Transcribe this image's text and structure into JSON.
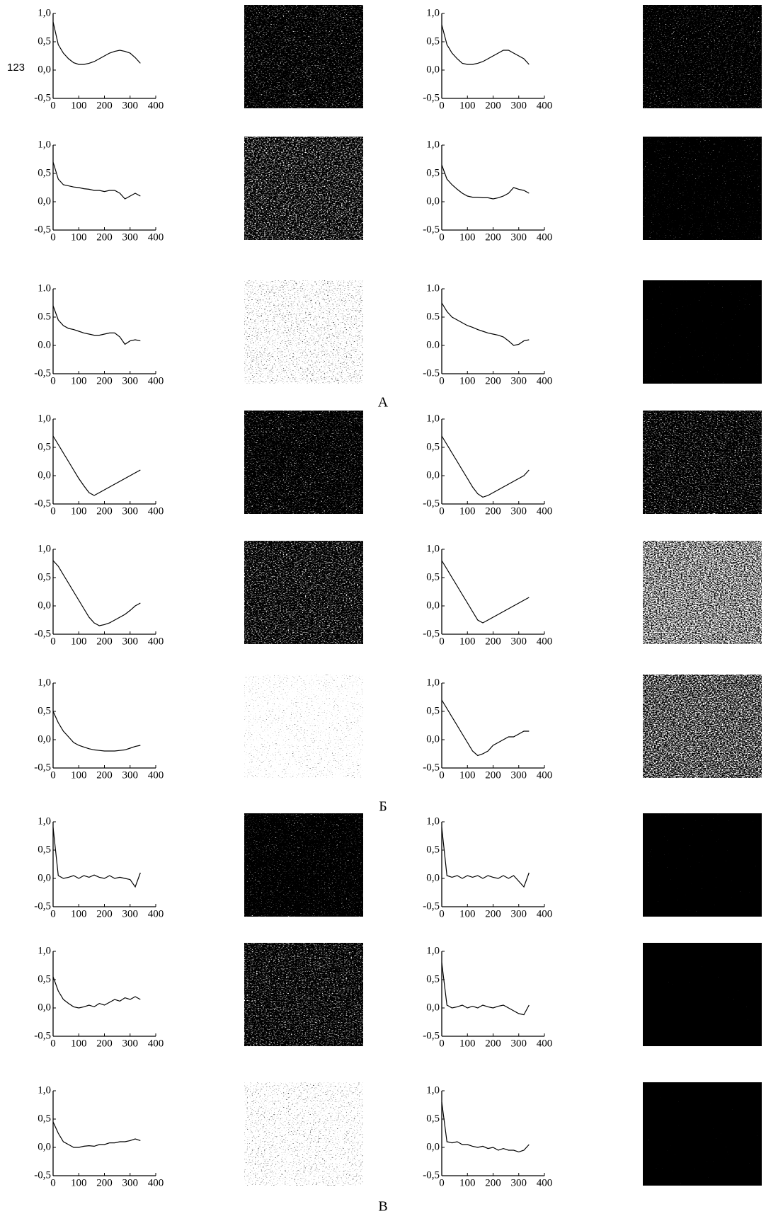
{
  "page_number": "123",
  "section_labels": [
    "А",
    "Б",
    "В"
  ],
  "chart_data": [
    {
      "type": "line",
      "color": "#000000",
      "xlim": [
        0,
        400
      ],
      "ylim": [
        -0.5,
        1.0
      ],
      "xticks": [
        0,
        100,
        200,
        300,
        400
      ],
      "yticks": [
        {
          "value": -0.5,
          "label": "-0,5"
        },
        {
          "value": 0,
          "label": "0,0"
        },
        {
          "value": 0.5,
          "label": "0,5"
        },
        {
          "value": 1,
          "label": "1,0"
        }
      ],
      "x": [
        0,
        20,
        40,
        60,
        80,
        100,
        120,
        140,
        160,
        180,
        200,
        220,
        240,
        260,
        280,
        300,
        320,
        340
      ],
      "values": [
        0.85,
        0.45,
        0.3,
        0.2,
        0.13,
        0.1,
        0.1,
        0.12,
        0.15,
        0.2,
        0.25,
        0.3,
        0.33,
        0.35,
        0.33,
        0.3,
        0.22,
        0.12
      ]
    },
    {
      "type": "line",
      "color": "#000000",
      "xlim": [
        0,
        400
      ],
      "ylim": [
        -0.5,
        1.0
      ],
      "xticks": [
        0,
        100,
        200,
        300,
        400
      ],
      "yticks": [
        {
          "value": -0.5,
          "label": "-0,5"
        },
        {
          "value": 0,
          "label": "0,0"
        },
        {
          "value": 0.5,
          "label": "0,5"
        },
        {
          "value": 1,
          "label": "1,0"
        }
      ],
      "x": [
        0,
        20,
        40,
        60,
        80,
        100,
        120,
        140,
        160,
        180,
        200,
        220,
        240,
        260,
        280,
        300,
        320,
        340
      ],
      "values": [
        0.8,
        0.45,
        0.3,
        0.2,
        0.12,
        0.1,
        0.1,
        0.12,
        0.15,
        0.2,
        0.25,
        0.3,
        0.35,
        0.35,
        0.3,
        0.25,
        0.2,
        0.1
      ]
    },
    {
      "type": "line",
      "color": "#000000",
      "xlim": [
        0,
        400
      ],
      "ylim": [
        -0.5,
        1.0
      ],
      "xticks": [
        0,
        100,
        200,
        300,
        400
      ],
      "yticks": [
        {
          "value": -0.5,
          "label": "-0,5"
        },
        {
          "value": 0,
          "label": "0,0"
        },
        {
          "value": 0.5,
          "label": "0,5"
        },
        {
          "value": 1,
          "label": "1,0"
        }
      ],
      "x": [
        0,
        20,
        40,
        60,
        80,
        100,
        120,
        140,
        160,
        180,
        200,
        220,
        240,
        260,
        280,
        300,
        320,
        340
      ],
      "values": [
        0.7,
        0.4,
        0.3,
        0.28,
        0.26,
        0.25,
        0.23,
        0.22,
        0.2,
        0.2,
        0.18,
        0.2,
        0.2,
        0.15,
        0.05,
        0.1,
        0.15,
        0.1
      ]
    },
    {
      "type": "line",
      "color": "#000000",
      "xlim": [
        0,
        400
      ],
      "ylim": [
        -0.5,
        1.0
      ],
      "xticks": [
        0,
        100,
        200,
        300,
        400
      ],
      "yticks": [
        {
          "value": -0.5,
          "label": "-0,5"
        },
        {
          "value": 0,
          "label": "0,0"
        },
        {
          "value": 0.5,
          "label": "0,5"
        },
        {
          "value": 1,
          "label": "1,0"
        }
      ],
      "x": [
        0,
        20,
        40,
        60,
        80,
        100,
        120,
        140,
        160,
        180,
        200,
        220,
        240,
        260,
        280,
        300,
        320,
        340
      ],
      "values": [
        0.65,
        0.4,
        0.3,
        0.22,
        0.15,
        0.1,
        0.08,
        0.08,
        0.07,
        0.07,
        0.05,
        0.07,
        0.1,
        0.15,
        0.25,
        0.22,
        0.2,
        0.15
      ]
    },
    {
      "type": "line",
      "color": "#000000",
      "xlim": [
        0,
        400
      ],
      "ylim": [
        -0.5,
        1.0
      ],
      "xticks": [
        0,
        100,
        200,
        300,
        400
      ],
      "yticks": [
        {
          "value": -0.5,
          "label": "-0,5"
        },
        {
          "value": 0,
          "label": "0.0"
        },
        {
          "value": 0.5,
          "label": "0.5"
        },
        {
          "value": 1,
          "label": "1.0"
        }
      ],
      "x": [
        0,
        20,
        40,
        60,
        80,
        100,
        120,
        140,
        160,
        180,
        200,
        220,
        240,
        260,
        280,
        300,
        320,
        340
      ],
      "values": [
        0.7,
        0.45,
        0.35,
        0.3,
        0.28,
        0.25,
        0.22,
        0.2,
        0.18,
        0.18,
        0.2,
        0.22,
        0.22,
        0.15,
        0.02,
        0.08,
        0.1,
        0.08
      ]
    },
    {
      "type": "line",
      "color": "#000000",
      "xlim": [
        0,
        400
      ],
      "ylim": [
        -0.5,
        1.0
      ],
      "xticks": [
        0,
        100,
        200,
        300,
        400
      ],
      "yticks": [
        {
          "value": -0.5,
          "label": "-0.5"
        },
        {
          "value": 0,
          "label": "0.0"
        },
        {
          "value": 0.5,
          "label": "0.5"
        },
        {
          "value": 1,
          "label": "1.0"
        }
      ],
      "x": [
        0,
        20,
        40,
        60,
        80,
        100,
        120,
        140,
        160,
        180,
        200,
        220,
        240,
        260,
        280,
        300,
        320,
        340
      ],
      "values": [
        0.75,
        0.6,
        0.5,
        0.45,
        0.4,
        0.35,
        0.32,
        0.28,
        0.25,
        0.22,
        0.2,
        0.18,
        0.15,
        0.08,
        0.0,
        0.02,
        0.08,
        0.1
      ]
    },
    {
      "type": "line",
      "color": "#000000",
      "xlim": [
        0,
        400
      ],
      "ylim": [
        -0.5,
        1.0
      ],
      "xticks": [
        0,
        100,
        200,
        300,
        400
      ],
      "yticks": [
        {
          "value": -0.5,
          "label": "-0,5"
        },
        {
          "value": 0,
          "label": "0,0"
        },
        {
          "value": 0.5,
          "label": "0,5"
        },
        {
          "value": 1,
          "label": "1,0"
        }
      ],
      "x": [
        0,
        20,
        40,
        60,
        80,
        100,
        120,
        140,
        160,
        180,
        200,
        220,
        240,
        260,
        280,
        300,
        320,
        340
      ],
      "values": [
        0.7,
        0.55,
        0.4,
        0.25,
        0.1,
        -0.05,
        -0.18,
        -0.3,
        -0.35,
        -0.3,
        -0.25,
        -0.2,
        -0.15,
        -0.1,
        -0.05,
        0.0,
        0.05,
        0.1
      ]
    },
    {
      "type": "line",
      "color": "#000000",
      "xlim": [
        0,
        400
      ],
      "ylim": [
        -0.5,
        1.0
      ],
      "xticks": [
        0,
        100,
        200,
        300,
        400
      ],
      "yticks": [
        {
          "value": -0.5,
          "label": "-0,5"
        },
        {
          "value": 0,
          "label": "0,0"
        },
        {
          "value": 0.5,
          "label": "0,5"
        },
        {
          "value": 1,
          "label": "1,0"
        }
      ],
      "x": [
        0,
        20,
        40,
        60,
        80,
        100,
        120,
        140,
        160,
        180,
        200,
        220,
        240,
        260,
        280,
        300,
        320,
        340
      ],
      "values": [
        0.7,
        0.55,
        0.4,
        0.25,
        0.1,
        -0.05,
        -0.2,
        -0.32,
        -0.38,
        -0.35,
        -0.3,
        -0.25,
        -0.2,
        -0.15,
        -0.1,
        -0.05,
        0.0,
        0.1
      ]
    },
    {
      "type": "line",
      "color": "#000000",
      "xlim": [
        0,
        400
      ],
      "ylim": [
        -0.5,
        1.0
      ],
      "xticks": [
        0,
        100,
        200,
        300,
        400
      ],
      "yticks": [
        {
          "value": -0.5,
          "label": "-0,5"
        },
        {
          "value": 0,
          "label": "0,0"
        },
        {
          "value": 0.5,
          "label": "0,5"
        },
        {
          "value": 1,
          "label": "1,0"
        }
      ],
      "x": [
        0,
        20,
        40,
        60,
        80,
        100,
        120,
        140,
        160,
        180,
        200,
        220,
        240,
        260,
        280,
        300,
        320,
        340
      ],
      "values": [
        0.8,
        0.7,
        0.55,
        0.4,
        0.25,
        0.1,
        -0.05,
        -0.2,
        -0.3,
        -0.35,
        -0.33,
        -0.3,
        -0.25,
        -0.2,
        -0.15,
        -0.08,
        0.0,
        0.05
      ]
    },
    {
      "type": "line",
      "color": "#000000",
      "xlim": [
        0,
        400
      ],
      "ylim": [
        -0.5,
        1.0
      ],
      "xticks": [
        0,
        100,
        200,
        300,
        400
      ],
      "yticks": [
        {
          "value": -0.5,
          "label": "-0,5"
        },
        {
          "value": 0,
          "label": "0,0"
        },
        {
          "value": 0.5,
          "label": "0,5"
        },
        {
          "value": 1,
          "label": "1,0"
        }
      ],
      "x": [
        0,
        20,
        40,
        60,
        80,
        100,
        120,
        140,
        160,
        180,
        200,
        220,
        240,
        260,
        280,
        300,
        320,
        340
      ],
      "values": [
        0.8,
        0.65,
        0.5,
        0.35,
        0.2,
        0.05,
        -0.1,
        -0.25,
        -0.3,
        -0.25,
        -0.2,
        -0.15,
        -0.1,
        -0.05,
        0.0,
        0.05,
        0.1,
        0.15
      ]
    },
    {
      "type": "line",
      "color": "#000000",
      "xlim": [
        0,
        400
      ],
      "ylim": [
        -0.5,
        1.0
      ],
      "xticks": [
        0,
        100,
        200,
        300,
        400
      ],
      "yticks": [
        {
          "value": -0.5,
          "label": "-0,5"
        },
        {
          "value": 0,
          "label": "0,0"
        },
        {
          "value": 0.5,
          "label": "0,5"
        },
        {
          "value": 1,
          "label": "1,0"
        }
      ],
      "x": [
        0,
        20,
        40,
        60,
        80,
        100,
        120,
        140,
        160,
        180,
        200,
        220,
        240,
        260,
        280,
        300,
        320,
        340
      ],
      "values": [
        0.5,
        0.3,
        0.15,
        0.05,
        -0.05,
        -0.1,
        -0.13,
        -0.16,
        -0.18,
        -0.19,
        -0.2,
        -0.2,
        -0.2,
        -0.19,
        -0.18,
        -0.15,
        -0.12,
        -0.1
      ]
    },
    {
      "type": "line",
      "color": "#000000",
      "xlim": [
        0,
        400
      ],
      "ylim": [
        -0.5,
        1.0
      ],
      "xticks": [
        0,
        100,
        200,
        300,
        400
      ],
      "yticks": [
        {
          "value": -0.5,
          "label": "-0,5"
        },
        {
          "value": 0,
          "label": "0,0"
        },
        {
          "value": 0.5,
          "label": "0,5"
        },
        {
          "value": 1,
          "label": "1,0"
        }
      ],
      "x": [
        0,
        20,
        40,
        60,
        80,
        100,
        120,
        140,
        160,
        180,
        200,
        220,
        240,
        260,
        280,
        300,
        320,
        340
      ],
      "values": [
        0.7,
        0.55,
        0.4,
        0.25,
        0.1,
        -0.05,
        -0.2,
        -0.28,
        -0.25,
        -0.2,
        -0.1,
        -0.05,
        0.0,
        0.05,
        0.05,
        0.1,
        0.15,
        0.15
      ]
    },
    {
      "type": "line",
      "color": "#000000",
      "xlim": [
        0,
        400
      ],
      "ylim": [
        -0.5,
        1.0
      ],
      "xticks": [
        0,
        100,
        200,
        300,
        400
      ],
      "yticks": [
        {
          "value": -0.5,
          "label": "-0,5"
        },
        {
          "value": 0,
          "label": "0,0"
        },
        {
          "value": 0.5,
          "label": "0,5"
        },
        {
          "value": 1,
          "label": "1,0"
        }
      ],
      "x": [
        0,
        20,
        40,
        60,
        80,
        100,
        120,
        140,
        160,
        180,
        200,
        220,
        240,
        260,
        280,
        300,
        320,
        340
      ],
      "values": [
        0.9,
        0.05,
        0.0,
        0.02,
        0.05,
        0.0,
        0.05,
        0.02,
        0.06,
        0.02,
        0.0,
        0.05,
        0.0,
        0.02,
        0.0,
        -0.02,
        -0.15,
        0.1
      ]
    },
    {
      "type": "line",
      "color": "#000000",
      "xlim": [
        0,
        400
      ],
      "ylim": [
        -0.5,
        1.0
      ],
      "xticks": [
        0,
        100,
        200,
        300,
        400
      ],
      "yticks": [
        {
          "value": -0.5,
          "label": "-0,5"
        },
        {
          "value": 0,
          "label": "0,0"
        },
        {
          "value": 0.5,
          "label": "0,5"
        },
        {
          "value": 1,
          "label": "1,0"
        }
      ],
      "x": [
        0,
        20,
        40,
        60,
        80,
        100,
        120,
        140,
        160,
        180,
        200,
        220,
        240,
        260,
        280,
        300,
        320,
        340
      ],
      "values": [
        0.9,
        0.05,
        0.02,
        0.05,
        0.0,
        0.05,
        0.02,
        0.05,
        0.0,
        0.05,
        0.02,
        0.0,
        0.05,
        0.0,
        0.05,
        -0.05,
        -0.15,
        0.1
      ]
    },
    {
      "type": "line",
      "color": "#000000",
      "xlim": [
        0,
        400
      ],
      "ylim": [
        -0.5,
        1.0
      ],
      "xticks": [
        0,
        100,
        200,
        300,
        400
      ],
      "yticks": [
        {
          "value": -0.5,
          "label": "-0,5"
        },
        {
          "value": 0,
          "label": "0,0"
        },
        {
          "value": 0.5,
          "label": "0,5"
        },
        {
          "value": 1,
          "label": "1,0"
        }
      ],
      "x": [
        0,
        20,
        40,
        60,
        80,
        100,
        120,
        140,
        160,
        180,
        200,
        220,
        240,
        260,
        280,
        300,
        320,
        340
      ],
      "values": [
        0.55,
        0.3,
        0.15,
        0.08,
        0.02,
        0.0,
        0.02,
        0.05,
        0.02,
        0.08,
        0.05,
        0.1,
        0.15,
        0.12,
        0.18,
        0.15,
        0.2,
        0.15
      ]
    },
    {
      "type": "line",
      "color": "#000000",
      "xlim": [
        0,
        400
      ],
      "ylim": [
        -0.5,
        1.0
      ],
      "xticks": [
        0,
        100,
        200,
        300,
        400
      ],
      "yticks": [
        {
          "value": -0.5,
          "label": "-0,5"
        },
        {
          "value": 0,
          "label": "0,0"
        },
        {
          "value": 0.5,
          "label": "0,5"
        },
        {
          "value": 1,
          "label": "1,0"
        }
      ],
      "x": [
        0,
        20,
        40,
        60,
        80,
        100,
        120,
        140,
        160,
        180,
        200,
        220,
        240,
        260,
        280,
        300,
        320,
        340
      ],
      "values": [
        0.8,
        0.05,
        0.0,
        0.02,
        0.05,
        0.0,
        0.03,
        0.0,
        0.05,
        0.02,
        0.0,
        0.03,
        0.05,
        0.0,
        -0.05,
        -0.1,
        -0.12,
        0.05
      ]
    },
    {
      "type": "line",
      "color": "#000000",
      "xlim": [
        0,
        400
      ],
      "ylim": [
        -0.5,
        1.0
      ],
      "xticks": [
        0,
        100,
        200,
        300,
        400
      ],
      "yticks": [
        {
          "value": -0.5,
          "label": "-0,5"
        },
        {
          "value": 0,
          "label": "0,0"
        },
        {
          "value": 0.5,
          "label": "0,5"
        },
        {
          "value": 1,
          "label": "1,0"
        }
      ],
      "x": [
        0,
        20,
        40,
        60,
        80,
        100,
        120,
        140,
        160,
        180,
        200,
        220,
        240,
        260,
        280,
        300,
        320,
        340
      ],
      "values": [
        0.45,
        0.25,
        0.1,
        0.05,
        0.0,
        0.0,
        0.02,
        0.03,
        0.02,
        0.05,
        0.05,
        0.08,
        0.08,
        0.1,
        0.1,
        0.12,
        0.15,
        0.12
      ]
    },
    {
      "type": "line",
      "color": "#000000",
      "xlim": [
        0,
        400
      ],
      "ylim": [
        -0.5,
        1.0
      ],
      "xticks": [
        0,
        100,
        200,
        300,
        400
      ],
      "yticks": [
        {
          "value": -0.5,
          "label": "-0,5"
        },
        {
          "value": 0,
          "label": "0,0"
        },
        {
          "value": 0.5,
          "label": "0,5"
        },
        {
          "value": 1,
          "label": "1,0"
        }
      ],
      "x": [
        0,
        20,
        40,
        60,
        80,
        100,
        120,
        140,
        160,
        180,
        200,
        220,
        240,
        260,
        280,
        300,
        320,
        340
      ],
      "values": [
        0.8,
        0.1,
        0.08,
        0.1,
        0.05,
        0.05,
        0.02,
        0.0,
        0.02,
        -0.02,
        0.0,
        -0.05,
        -0.02,
        -0.05,
        -0.05,
        -0.08,
        -0.05,
        0.05
      ]
    }
  ]
}
